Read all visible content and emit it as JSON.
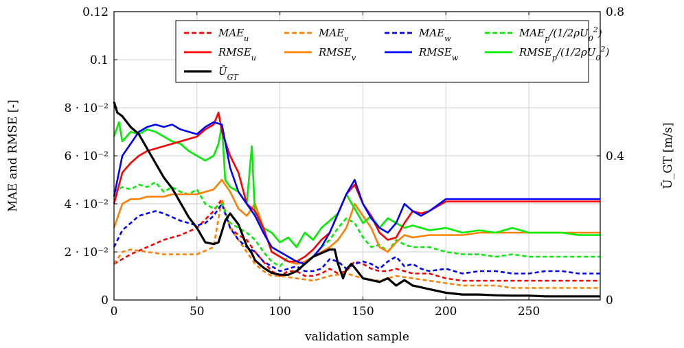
{
  "chart_data": {
    "type": "line",
    "xlabel": "validation sample",
    "ylabel_left": "MAE and RMSE [-]",
    "ylabel_right": "Ū_GT [m/s]",
    "xlim": [
      0,
      293
    ],
    "ylim_left": [
      0,
      0.12
    ],
    "ylim_right": [
      0,
      0.8
    ],
    "grid": true,
    "legend_position": "top-right",
    "x_ticks": [
      {
        "value": 0,
        "label": "0"
      },
      {
        "value": 50,
        "label": "50"
      },
      {
        "value": 100,
        "label": "100"
      },
      {
        "value": 150,
        "label": "150"
      },
      {
        "value": 200,
        "label": "200"
      },
      {
        "value": 250,
        "label": "250"
      }
    ],
    "y_ticks_left": [
      {
        "value": 0,
        "label": "0"
      },
      {
        "value": 0.02,
        "label": "2 · 10⁻²"
      },
      {
        "value": 0.04,
        "label": "4 · 10⁻²"
      },
      {
        "value": 0.06,
        "label": "6 · 10⁻²"
      },
      {
        "value": 0.08,
        "label": "8 · 10⁻²"
      },
      {
        "value": 0.1,
        "label": "0.1"
      },
      {
        "value": 0.12,
        "label": "0.12"
      }
    ],
    "y_ticks_right": [
      {
        "value": 0,
        "label": "0"
      },
      {
        "value": 0.4,
        "label": "0.4"
      },
      {
        "value": 0.8,
        "label": "0.8"
      }
    ],
    "series": [
      {
        "name": "MAE_u",
        "legend_label": "MAE",
        "legend_sub": "u",
        "color": "#ff0000",
        "dashed": true,
        "axis": "left",
        "x": [
          0,
          10,
          20,
          30,
          40,
          50,
          60,
          65,
          70,
          75,
          80,
          85,
          90,
          95,
          100,
          105,
          110,
          115,
          120,
          125,
          130,
          135,
          140,
          145,
          150,
          155,
          160,
          165,
          170,
          175,
          180,
          190,
          200,
          210,
          220,
          230,
          240,
          250,
          260,
          270,
          280,
          293
        ],
        "y": [
          0.015,
          0.019,
          0.022,
          0.025,
          0.027,
          0.03,
          0.037,
          0.042,
          0.03,
          0.027,
          0.025,
          0.02,
          0.016,
          0.012,
          0.01,
          0.012,
          0.012,
          0.01,
          0.01,
          0.011,
          0.013,
          0.011,
          0.012,
          0.016,
          0.015,
          0.013,
          0.012,
          0.012,
          0.013,
          0.012,
          0.011,
          0.011,
          0.009,
          0.008,
          0.008,
          0.008,
          0.008,
          0.008,
          0.008,
          0.008,
          0.008,
          0.008
        ]
      },
      {
        "name": "MAE_v",
        "legend_label": "MAE",
        "legend_sub": "v",
        "color": "#ff8000",
        "dashed": true,
        "axis": "left",
        "x": [
          0,
          5,
          10,
          20,
          30,
          40,
          50,
          60,
          65,
          70,
          75,
          80,
          85,
          90,
          95,
          100,
          110,
          120,
          130,
          140,
          150,
          160,
          170,
          180,
          190,
          200,
          210,
          220,
          230,
          240,
          250,
          260,
          270,
          280,
          293
        ],
        "y": [
          0.015,
          0.02,
          0.021,
          0.02,
          0.019,
          0.019,
          0.019,
          0.022,
          0.042,
          0.03,
          0.025,
          0.02,
          0.015,
          0.012,
          0.01,
          0.01,
          0.009,
          0.008,
          0.01,
          0.011,
          0.009,
          0.008,
          0.01,
          0.009,
          0.008,
          0.007,
          0.006,
          0.006,
          0.006,
          0.005,
          0.005,
          0.005,
          0.005,
          0.005,
          0.005
        ]
      },
      {
        "name": "MAE_w",
        "legend_label": "MAE",
        "legend_sub": "w",
        "color": "#0000ff",
        "dashed": true,
        "axis": "left",
        "x": [
          0,
          5,
          10,
          15,
          20,
          25,
          30,
          40,
          50,
          55,
          60,
          65,
          70,
          75,
          80,
          85,
          90,
          95,
          100,
          105,
          110,
          115,
          120,
          125,
          130,
          135,
          140,
          145,
          150,
          155,
          160,
          165,
          170,
          175,
          180,
          185,
          190,
          200,
          210,
          220,
          230,
          240,
          250,
          260,
          270,
          280,
          293
        ],
        "y": [
          0.022,
          0.029,
          0.032,
          0.035,
          0.036,
          0.037,
          0.036,
          0.033,
          0.031,
          0.032,
          0.035,
          0.04,
          0.03,
          0.025,
          0.022,
          0.02,
          0.016,
          0.014,
          0.012,
          0.013,
          0.014,
          0.012,
          0.012,
          0.013,
          0.017,
          0.016,
          0.013,
          0.015,
          0.016,
          0.015,
          0.013,
          0.016,
          0.018,
          0.014,
          0.015,
          0.013,
          0.012,
          0.013,
          0.011,
          0.012,
          0.012,
          0.011,
          0.011,
          0.012,
          0.012,
          0.011,
          0.011
        ]
      },
      {
        "name": "MAE_p/(1/2ρU_0^2)",
        "legend_label": "MAE",
        "legend_sub": "p",
        "legend_suffix": "/(1/2ρU",
        "legend_suffix_sub": "0",
        "legend_suffix_sup": "2",
        "legend_close": ")",
        "color": "#00ee00",
        "dashed": true,
        "axis": "left",
        "x": [
          0,
          5,
          10,
          15,
          20,
          25,
          30,
          35,
          40,
          45,
          50,
          55,
          60,
          65,
          70,
          75,
          80,
          85,
          90,
          95,
          100,
          105,
          110,
          115,
          120,
          125,
          130,
          135,
          140,
          145,
          150,
          155,
          160,
          165,
          170,
          175,
          180,
          190,
          200,
          210,
          220,
          230,
          240,
          250,
          260,
          270,
          280,
          293
        ],
        "y": [
          0.045,
          0.047,
          0.046,
          0.048,
          0.047,
          0.049,
          0.045,
          0.047,
          0.045,
          0.044,
          0.046,
          0.04,
          0.038,
          0.04,
          0.032,
          0.03,
          0.028,
          0.025,
          0.02,
          0.016,
          0.014,
          0.018,
          0.016,
          0.015,
          0.018,
          0.022,
          0.025,
          0.03,
          0.034,
          0.032,
          0.026,
          0.022,
          0.023,
          0.02,
          0.025,
          0.023,
          0.022,
          0.022,
          0.02,
          0.019,
          0.019,
          0.018,
          0.019,
          0.018,
          0.018,
          0.018,
          0.018,
          0.018
        ]
      },
      {
        "name": "RMSE_u",
        "legend_label": "RMSE",
        "legend_sub": "u",
        "color": "#ff0000",
        "dashed": false,
        "axis": "left",
        "x": [
          0,
          5,
          10,
          15,
          20,
          25,
          30,
          35,
          40,
          45,
          50,
          55,
          60,
          63,
          65,
          70,
          75,
          80,
          85,
          90,
          95,
          100,
          105,
          110,
          115,
          120,
          125,
          130,
          135,
          140,
          145,
          150,
          155,
          160,
          165,
          170,
          175,
          180,
          185,
          190,
          200,
          210,
          220,
          230,
          240,
          250,
          260,
          270,
          280,
          293
        ],
        "y": [
          0.04,
          0.053,
          0.057,
          0.06,
          0.062,
          0.063,
          0.064,
          0.065,
          0.066,
          0.067,
          0.068,
          0.071,
          0.073,
          0.078,
          0.07,
          0.06,
          0.053,
          0.04,
          0.037,
          0.03,
          0.02,
          0.018,
          0.016,
          0.016,
          0.018,
          0.021,
          0.025,
          0.028,
          0.036,
          0.044,
          0.048,
          0.04,
          0.035,
          0.028,
          0.025,
          0.026,
          0.032,
          0.037,
          0.036,
          0.037,
          0.041,
          0.041,
          0.041,
          0.041,
          0.041,
          0.041,
          0.041,
          0.041,
          0.041,
          0.041
        ]
      },
      {
        "name": "RMSE_v",
        "legend_label": "RMSE",
        "legend_sub": "v",
        "color": "#ff8000",
        "dashed": false,
        "axis": "left",
        "x": [
          0,
          5,
          10,
          15,
          20,
          25,
          30,
          35,
          40,
          45,
          50,
          55,
          60,
          65,
          70,
          75,
          80,
          85,
          90,
          95,
          100,
          105,
          110,
          115,
          120,
          125,
          130,
          135,
          140,
          145,
          150,
          155,
          160,
          165,
          170,
          175,
          180,
          190,
          200,
          210,
          220,
          230,
          240,
          250,
          260,
          270,
          280,
          293
        ],
        "y": [
          0.03,
          0.04,
          0.042,
          0.042,
          0.043,
          0.043,
          0.043,
          0.044,
          0.044,
          0.044,
          0.044,
          0.045,
          0.046,
          0.05,
          0.045,
          0.038,
          0.035,
          0.04,
          0.03,
          0.02,
          0.018,
          0.016,
          0.015,
          0.016,
          0.018,
          0.02,
          0.022,
          0.025,
          0.03,
          0.04,
          0.035,
          0.03,
          0.022,
          0.02,
          0.024,
          0.027,
          0.026,
          0.027,
          0.027,
          0.027,
          0.028,
          0.028,
          0.028,
          0.028,
          0.028,
          0.028,
          0.028,
          0.028
        ]
      },
      {
        "name": "RMSE_w",
        "legend_label": "RMSE",
        "legend_sub": "w",
        "color": "#0000ff",
        "dashed": false,
        "axis": "left",
        "x": [
          0,
          5,
          10,
          15,
          20,
          25,
          30,
          35,
          40,
          45,
          50,
          55,
          60,
          65,
          70,
          75,
          80,
          85,
          90,
          95,
          100,
          105,
          110,
          115,
          120,
          125,
          130,
          135,
          140,
          145,
          150,
          155,
          160,
          165,
          170,
          175,
          180,
          185,
          190,
          200,
          210,
          220,
          230,
          240,
          250,
          260,
          270,
          280,
          293
        ],
        "y": [
          0.043,
          0.06,
          0.065,
          0.07,
          0.072,
          0.073,
          0.072,
          0.073,
          0.071,
          0.07,
          0.069,
          0.072,
          0.074,
          0.073,
          0.055,
          0.045,
          0.04,
          0.035,
          0.028,
          0.022,
          0.02,
          0.018,
          0.016,
          0.015,
          0.018,
          0.022,
          0.028,
          0.036,
          0.044,
          0.05,
          0.04,
          0.034,
          0.03,
          0.028,
          0.032,
          0.04,
          0.037,
          0.035,
          0.037,
          0.042,
          0.042,
          0.042,
          0.042,
          0.042,
          0.042,
          0.042,
          0.042,
          0.042,
          0.042
        ]
      },
      {
        "name": "RMSE_p/(1/2ρU_0^2)",
        "legend_label": "RMSE",
        "legend_sub": "p",
        "legend_suffix": "/(1/2ρU",
        "legend_suffix_sub": "0",
        "legend_suffix_sup": "2",
        "legend_close": ")",
        "color": "#00ee00",
        "dashed": false,
        "axis": "left",
        "x": [
          0,
          3,
          5,
          10,
          15,
          20,
          25,
          30,
          35,
          40,
          45,
          50,
          55,
          60,
          63,
          65,
          67,
          70,
          75,
          80,
          83,
          85,
          90,
          95,
          100,
          105,
          110,
          115,
          120,
          125,
          130,
          135,
          140,
          145,
          150,
          155,
          160,
          165,
          170,
          175,
          180,
          190,
          200,
          210,
          220,
          230,
          240,
          250,
          260,
          270,
          280,
          293
        ],
        "y": [
          0.068,
          0.074,
          0.066,
          0.07,
          0.069,
          0.071,
          0.07,
          0.068,
          0.066,
          0.065,
          0.062,
          0.06,
          0.058,
          0.06,
          0.065,
          0.073,
          0.05,
          0.047,
          0.045,
          0.04,
          0.064,
          0.035,
          0.03,
          0.028,
          0.024,
          0.026,
          0.022,
          0.028,
          0.025,
          0.03,
          0.033,
          0.036,
          0.044,
          0.038,
          0.032,
          0.035,
          0.03,
          0.034,
          0.032,
          0.03,
          0.031,
          0.029,
          0.03,
          0.028,
          0.029,
          0.028,
          0.03,
          0.028,
          0.028,
          0.028,
          0.027,
          0.027
        ]
      },
      {
        "name": "Ū_GT",
        "legend_label": "Ū",
        "legend_sub": "GT",
        "color": "#000000",
        "dashed": false,
        "axis": "right",
        "x": [
          0,
          2,
          5,
          10,
          15,
          20,
          25,
          30,
          35,
          40,
          45,
          50,
          55,
          60,
          63,
          65,
          67,
          70,
          75,
          80,
          83,
          85,
          90,
          95,
          100,
          105,
          110,
          115,
          120,
          125,
          130,
          133,
          135,
          138,
          140,
          143,
          145,
          150,
          155,
          160,
          165,
          170,
          175,
          180,
          185,
          190,
          195,
          200,
          210,
          220,
          230,
          240,
          250,
          260,
          270,
          280,
          293
        ],
        "y": [
          0.55,
          0.52,
          0.51,
          0.48,
          0.46,
          0.42,
          0.38,
          0.34,
          0.31,
          0.27,
          0.23,
          0.2,
          0.16,
          0.155,
          0.16,
          0.19,
          0.22,
          0.24,
          0.21,
          0.15,
          0.13,
          0.11,
          0.09,
          0.075,
          0.07,
          0.07,
          0.08,
          0.1,
          0.12,
          0.13,
          0.14,
          0.14,
          0.1,
          0.06,
          0.085,
          0.1,
          0.09,
          0.06,
          0.055,
          0.05,
          0.06,
          0.04,
          0.055,
          0.04,
          0.035,
          0.03,
          0.025,
          0.02,
          0.015,
          0.015,
          0.013,
          0.012,
          0.012,
          0.01,
          0.01,
          0.01,
          0.01
        ]
      }
    ]
  }
}
